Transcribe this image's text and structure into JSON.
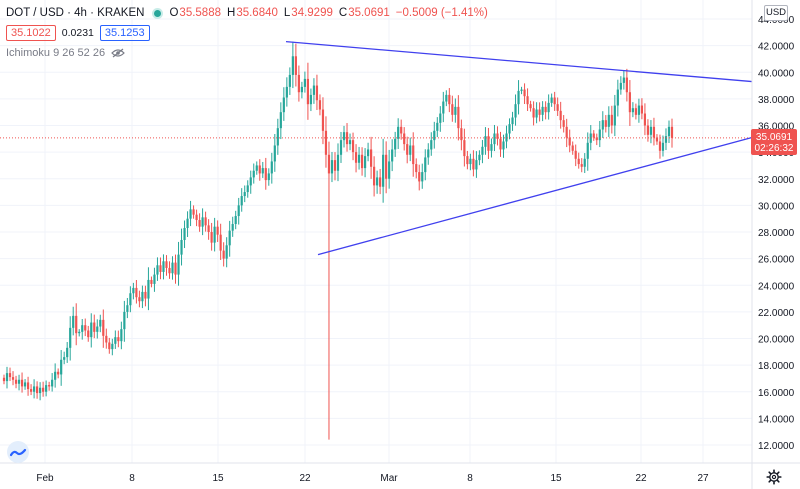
{
  "header": {
    "symbol": "DOT / USD · 4h · KRAKEN",
    "open_label": "O",
    "open": "35.5888",
    "high_label": "H",
    "high": "35.6840",
    "low_label": "L",
    "low": "34.9299",
    "close_label": "C",
    "close": "35.0691",
    "change": "−0.5009 (−1.41%)"
  },
  "quote": {
    "bid": "35.1022",
    "spread": "0.0231",
    "ask": "35.1253"
  },
  "indicator": {
    "label": "Ichimoku 9 26 52 26",
    "visibility_icon": "eye-icon"
  },
  "currency_badge": "USD",
  "price_marker": {
    "price": "35.0691",
    "countdown": "02:26:32"
  },
  "colors": {
    "up": "#26a69a",
    "down": "#ef5350",
    "trendline": "#4040ee",
    "grid": "#f0f3fa",
    "price_line": "#ef5350"
  },
  "icons": {
    "logo": "tradingview-logo-icon",
    "settings": "gear-icon"
  },
  "chart_data": {
    "type": "candlestick",
    "y_ticks": [
      "44.0000",
      "42.0000",
      "40.0000",
      "38.0000",
      "36.0000",
      "34.0000",
      "32.0000",
      "30.0000",
      "28.0000",
      "26.0000",
      "24.0000",
      "22.0000",
      "20.0000",
      "18.0000",
      "16.0000",
      "14.0000",
      "12.0000"
    ],
    "ylim": [
      10.6,
      44.4
    ],
    "x_ticks": [
      "Feb",
      "8",
      "15",
      "22",
      "Mar",
      "8",
      "15",
      "22",
      "27"
    ],
    "grid": true,
    "last_price": 35.0691,
    "trendlines": [
      {
        "from": [
          "Feb 20",
          42.3
        ],
        "to": [
          "Mar 27+",
          39.3
        ]
      },
      {
        "from": [
          "Feb 23",
          26.3
        ],
        "to": [
          "Mar 27+",
          35.1
        ]
      }
    ],
    "candle_closes": [
      16.8,
      17.4,
      17.1,
      16.9,
      16.6,
      16.9,
      16.4,
      16.7,
      16.2,
      16.0,
      16.4,
      15.9,
      16.3,
      16.0,
      16.5,
      16.4,
      16.9,
      17.5,
      17.3,
      18.4,
      18.6,
      19.3,
      20.8,
      21.7,
      20.4,
      20.5,
      21.0,
      20.6,
      20.1,
      21.2,
      20.5,
      20.9,
      21.4,
      20.2,
      19.7,
      19.2,
      19.6,
      20.1,
      19.8,
      20.7,
      22.0,
      22.5,
      23.4,
      23.8,
      23.1,
      22.8,
      23.5,
      23.0,
      24.4,
      24.1,
      24.8,
      25.5,
      25.0,
      25.8,
      25.3,
      24.9,
      25.7,
      24.8,
      26.3,
      27.4,
      28.3,
      29.0,
      29.7,
      29.3,
      28.9,
      28.4,
      29.1,
      28.5,
      28.0,
      27.2,
      28.4,
      27.8,
      26.6,
      26.0,
      27.0,
      28.1,
      28.6,
      29.2,
      30.0,
      30.7,
      31.0,
      31.5,
      32.1,
      32.6,
      33.0,
      32.4,
      32.8,
      31.9,
      32.4,
      33.3,
      34.5,
      35.8,
      37.0,
      38.1,
      38.9,
      39.8,
      41.2,
      39.8,
      38.5,
      38.9,
      39.5,
      37.6,
      38.3,
      39.0,
      37.9,
      37.2,
      35.6,
      33.8,
      32.4,
      33.4,
      32.6,
      33.8,
      34.9,
      35.5,
      34.6,
      34.9,
      34.0,
      33.2,
      33.8,
      32.8,
      33.7,
      34.2,
      32.9,
      31.5,
      32.1,
      31.4,
      33.8,
      32.0,
      33.3,
      34.2,
      35.0,
      35.9,
      35.4,
      34.6,
      33.8,
      34.5,
      33.1,
      32.5,
      31.8,
      32.5,
      33.6,
      34.2,
      34.9,
      35.6,
      36.2,
      36.9,
      37.8,
      38.3,
      37.6,
      36.8,
      37.4,
      35.8,
      34.9,
      33.7,
      33.1,
      33.5,
      32.7,
      33.4,
      33.8,
      34.4,
      35.2,
      34.1,
      34.6,
      35.4,
      35.0,
      34.2,
      34.8,
      35.4,
      36.1,
      36.6,
      37.6,
      38.6,
      38.7,
      38.2,
      37.6,
      37.3,
      36.6,
      37.2,
      36.8,
      37.4,
      37.0,
      37.7,
      38.1,
      37.6,
      37.1,
      36.4,
      35.9,
      35.1,
      34.5,
      34.1,
      33.5,
      33.1,
      32.9,
      33.5,
      34.7,
      35.4,
      35.1,
      34.9,
      35.7,
      36.4,
      35.9,
      36.8,
      36.0,
      37.5,
      38.7,
      39.2,
      39.6,
      38.5,
      37.0,
      37.3,
      36.8,
      37.5,
      36.9,
      36.0,
      35.3,
      35.9,
      35.1,
      34.8,
      34.1,
      34.7,
      35.2,
      35.9,
      35.0691
    ]
  }
}
